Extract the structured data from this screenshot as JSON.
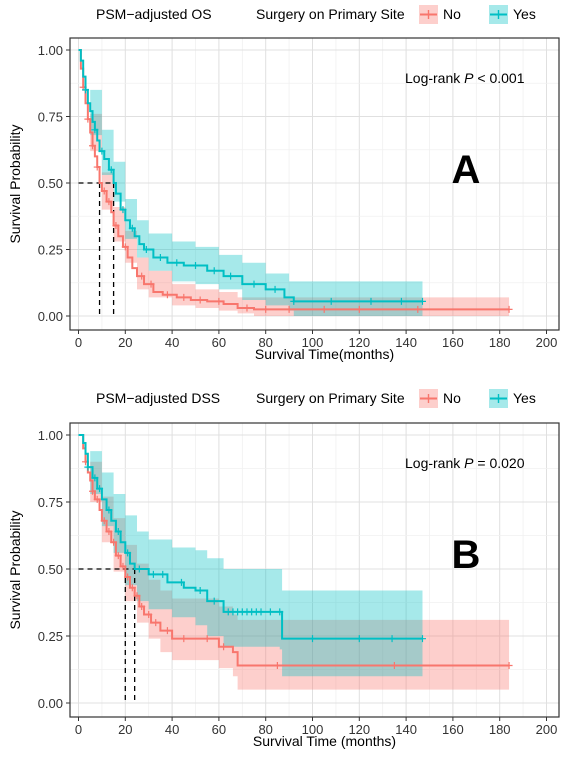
{
  "chart_data": [
    {
      "type": "line",
      "subtype": "kaplan-meier",
      "title": "PSM−adjusted OS",
      "legend_title": "Surgery on Primary Site",
      "legend_position": "top",
      "xlabel": "Survival Time(months)",
      "ylabel": "Survival Probability",
      "xlim": [
        0,
        200
      ],
      "ylim": [
        0,
        1
      ],
      "x_ticks": [
        "0",
        "20",
        "40",
        "60",
        "80",
        "100",
        "120",
        "140",
        "160",
        "180",
        "200"
      ],
      "y_ticks": [
        "0.00",
        "0.25",
        "0.50",
        "0.75",
        "1.00"
      ],
      "annotation_prefix": "Log-rank ",
      "annotation_p": "P",
      "annotation_suffix": " < 0.001",
      "panel_letter": "A",
      "median_lines": [
        9,
        15
      ],
      "grid": true,
      "series": [
        {
          "name": "No",
          "color": "#F8766D",
          "steps": [
            [
              0,
              1.0
            ],
            [
              1,
              0.93
            ],
            [
              2,
              0.86
            ],
            [
              3,
              0.8
            ],
            [
              4,
              0.74
            ],
            [
              5,
              0.69
            ],
            [
              6,
              0.64
            ],
            [
              7,
              0.6
            ],
            [
              8,
              0.56
            ],
            [
              9,
              0.5
            ],
            [
              10,
              0.47
            ],
            [
              12,
              0.43
            ],
            [
              14,
              0.39
            ],
            [
              15,
              0.34
            ],
            [
              17,
              0.3
            ],
            [
              19,
              0.26
            ],
            [
              21,
              0.22
            ],
            [
              23,
              0.18
            ],
            [
              25,
              0.15
            ],
            [
              28,
              0.12
            ],
            [
              32,
              0.09
            ],
            [
              36,
              0.08
            ],
            [
              42,
              0.07
            ],
            [
              48,
              0.06
            ],
            [
              55,
              0.055
            ],
            [
              62,
              0.045
            ],
            [
              68,
              0.03
            ],
            [
              75,
              0.025
            ],
            [
              90,
              0.025
            ],
            [
              184,
              0.025
            ]
          ],
          "ci_upper": [
            [
              0,
              1.0
            ],
            [
              5,
              0.76
            ],
            [
              10,
              0.54
            ],
            [
              15,
              0.41
            ],
            [
              20,
              0.32
            ],
            [
              25,
              0.22
            ],
            [
              30,
              0.17
            ],
            [
              40,
              0.12
            ],
            [
              50,
              0.1
            ],
            [
              60,
              0.09
            ],
            [
              68,
              0.07
            ],
            [
              75,
              0.07
            ],
            [
              184,
              0.07
            ]
          ],
          "ci_lower": [
            [
              0,
              1.0
            ],
            [
              5,
              0.62
            ],
            [
              10,
              0.4
            ],
            [
              15,
              0.28
            ],
            [
              20,
              0.2
            ],
            [
              25,
              0.1
            ],
            [
              30,
              0.07
            ],
            [
              40,
              0.04
            ],
            [
              50,
              0.03
            ],
            [
              60,
              0.02
            ],
            [
              68,
              0.01
            ],
            [
              75,
              0.0
            ],
            [
              184,
              0.0
            ]
          ],
          "censor": [
            2,
            4,
            6,
            8,
            11,
            13,
            16,
            20,
            27,
            31,
            38,
            45,
            52,
            60,
            72,
            80,
            90,
            105,
            120,
            145,
            184
          ]
        },
        {
          "name": "Yes",
          "color": "#00BFC4",
          "steps": [
            [
              0,
              1.0
            ],
            [
              1,
              0.96
            ],
            [
              2,
              0.9
            ],
            [
              3,
              0.85
            ],
            [
              4,
              0.8
            ],
            [
              5,
              0.77
            ],
            [
              6,
              0.73
            ],
            [
              7,
              0.7
            ],
            [
              8,
              0.66
            ],
            [
              9,
              0.62
            ],
            [
              11,
              0.59
            ],
            [
              13,
              0.55
            ],
            [
              15,
              0.5
            ],
            [
              16,
              0.46
            ],
            [
              18,
              0.4
            ],
            [
              20,
              0.36
            ],
            [
              22,
              0.33
            ],
            [
              24,
              0.3
            ],
            [
              26,
              0.27
            ],
            [
              28,
              0.25
            ],
            [
              32,
              0.22
            ],
            [
              38,
              0.2
            ],
            [
              45,
              0.19
            ],
            [
              55,
              0.17
            ],
            [
              62,
              0.15
            ],
            [
              70,
              0.12
            ],
            [
              80,
              0.1
            ],
            [
              88,
              0.07
            ],
            [
              92,
              0.055
            ],
            [
              147,
              0.055
            ]
          ],
          "ci_upper": [
            [
              0,
              1.0
            ],
            [
              5,
              0.85
            ],
            [
              10,
              0.7
            ],
            [
              15,
              0.58
            ],
            [
              20,
              0.44
            ],
            [
              25,
              0.36
            ],
            [
              30,
              0.31
            ],
            [
              40,
              0.28
            ],
            [
              50,
              0.26
            ],
            [
              60,
              0.23
            ],
            [
              70,
              0.2
            ],
            [
              80,
              0.16
            ],
            [
              90,
              0.13
            ],
            [
              92,
              0.13
            ],
            [
              147,
              0.13
            ]
          ],
          "ci_lower": [
            [
              0,
              1.0
            ],
            [
              5,
              0.68
            ],
            [
              10,
              0.53
            ],
            [
              15,
              0.43
            ],
            [
              20,
              0.29
            ],
            [
              25,
              0.22
            ],
            [
              30,
              0.17
            ],
            [
              40,
              0.13
            ],
            [
              50,
              0.12
            ],
            [
              60,
              0.1
            ],
            [
              70,
              0.06
            ],
            [
              80,
              0.04
            ],
            [
              90,
              0.02
            ],
            [
              92,
              0.0
            ],
            [
              147,
              0.0
            ]
          ],
          "censor": [
            3,
            7,
            10,
            14,
            19,
            23,
            29,
            35,
            42,
            50,
            58,
            65,
            75,
            84,
            92,
            108,
            125,
            138,
            147
          ]
        }
      ]
    },
    {
      "type": "line",
      "subtype": "kaplan-meier",
      "title": "PSM−adjusted DSS",
      "legend_title": "Surgery on Primary Site",
      "legend_position": "top",
      "xlabel": "Survival Time (months)",
      "ylabel": "Survival Probability",
      "xlim": [
        0,
        200
      ],
      "ylim": [
        0,
        1
      ],
      "x_ticks": [
        "0",
        "20",
        "40",
        "60",
        "80",
        "100",
        "120",
        "140",
        "160",
        "180",
        "200"
      ],
      "y_ticks": [
        "0.00",
        "0.25",
        "0.50",
        "0.75",
        "1.00"
      ],
      "annotation_prefix": "Log-rank ",
      "annotation_p": "P",
      "annotation_suffix": " = 0.020",
      "panel_letter": "B",
      "median_lines": [
        20,
        24
      ],
      "grid": true,
      "series": [
        {
          "name": "No",
          "color": "#F8766D",
          "steps": [
            [
              0,
              1.0
            ],
            [
              2,
              0.95
            ],
            [
              3,
              0.9
            ],
            [
              4,
              0.86
            ],
            [
              5,
              0.83
            ],
            [
              6,
              0.79
            ],
            [
              7,
              0.76
            ],
            [
              9,
              0.72
            ],
            [
              10,
              0.68
            ],
            [
              12,
              0.64
            ],
            [
              14,
              0.6
            ],
            [
              16,
              0.55
            ],
            [
              18,
              0.51
            ],
            [
              20,
              0.47
            ],
            [
              22,
              0.43
            ],
            [
              24,
              0.4
            ],
            [
              26,
              0.36
            ],
            [
              28,
              0.33
            ],
            [
              31,
              0.3
            ],
            [
              35,
              0.27
            ],
            [
              40,
              0.24
            ],
            [
              50,
              0.24
            ],
            [
              60,
              0.21
            ],
            [
              66,
              0.19
            ],
            [
              68,
              0.14
            ],
            [
              184,
              0.14
            ]
          ],
          "ci_upper": [
            [
              0,
              1.0
            ],
            [
              5,
              0.9
            ],
            [
              10,
              0.77
            ],
            [
              15,
              0.69
            ],
            [
              20,
              0.59
            ],
            [
              25,
              0.52
            ],
            [
              30,
              0.46
            ],
            [
              35,
              0.42
            ],
            [
              40,
              0.39
            ],
            [
              60,
              0.36
            ],
            [
              66,
              0.33
            ],
            [
              68,
              0.31
            ],
            [
              184,
              0.31
            ]
          ],
          "ci_lower": [
            [
              0,
              1.0
            ],
            [
              5,
              0.75
            ],
            [
              10,
              0.6
            ],
            [
              15,
              0.49
            ],
            [
              20,
              0.38
            ],
            [
              25,
              0.3
            ],
            [
              30,
              0.24
            ],
            [
              35,
              0.19
            ],
            [
              40,
              0.16
            ],
            [
              60,
              0.13
            ],
            [
              66,
              0.1
            ],
            [
              68,
              0.05
            ],
            [
              184,
              0.05
            ]
          ],
          "censor": [
            3,
            6,
            8,
            11,
            13,
            15,
            17,
            19,
            21,
            23,
            25,
            27,
            30,
            33,
            38,
            45,
            55,
            62,
            85,
            135,
            184
          ]
        },
        {
          "name": "Yes",
          "color": "#00BFC4",
          "steps": [
            [
              0,
              1.0
            ],
            [
              2,
              0.97
            ],
            [
              3,
              0.93
            ],
            [
              4,
              0.88
            ],
            [
              6,
              0.84
            ],
            [
              8,
              0.8
            ],
            [
              10,
              0.76
            ],
            [
              12,
              0.72
            ],
            [
              14,
              0.68
            ],
            [
              16,
              0.64
            ],
            [
              18,
              0.6
            ],
            [
              20,
              0.56
            ],
            [
              22,
              0.52
            ],
            [
              24,
              0.5
            ],
            [
              30,
              0.48
            ],
            [
              38,
              0.45
            ],
            [
              45,
              0.43
            ],
            [
              50,
              0.42
            ],
            [
              55,
              0.38
            ],
            [
              62,
              0.34
            ],
            [
              86,
              0.34
            ],
            [
              87,
              0.24
            ],
            [
              147,
              0.24
            ]
          ],
          "ci_upper": [
            [
              0,
              1.0
            ],
            [
              5,
              0.94
            ],
            [
              10,
              0.86
            ],
            [
              15,
              0.78
            ],
            [
              20,
              0.7
            ],
            [
              25,
              0.64
            ],
            [
              30,
              0.61
            ],
            [
              40,
              0.58
            ],
            [
              50,
              0.57
            ],
            [
              55,
              0.54
            ],
            [
              62,
              0.5
            ],
            [
              86,
              0.5
            ],
            [
              87,
              0.42
            ],
            [
              147,
              0.42
            ]
          ],
          "ci_lower": [
            [
              0,
              1.0
            ],
            [
              5,
              0.78
            ],
            [
              10,
              0.66
            ],
            [
              15,
              0.56
            ],
            [
              20,
              0.44
            ],
            [
              25,
              0.38
            ],
            [
              30,
              0.35
            ],
            [
              40,
              0.32
            ],
            [
              50,
              0.29
            ],
            [
              55,
              0.25
            ],
            [
              62,
              0.21
            ],
            [
              86,
              0.2
            ],
            [
              87,
              0.1
            ],
            [
              147,
              0.1
            ]
          ],
          "censor": [
            4,
            7,
            9,
            13,
            17,
            21,
            26,
            32,
            36,
            44,
            52,
            58,
            64,
            66,
            68,
            70,
            72,
            74,
            76,
            78,
            82,
            86,
            100,
            120,
            134,
            147
          ]
        }
      ]
    }
  ]
}
